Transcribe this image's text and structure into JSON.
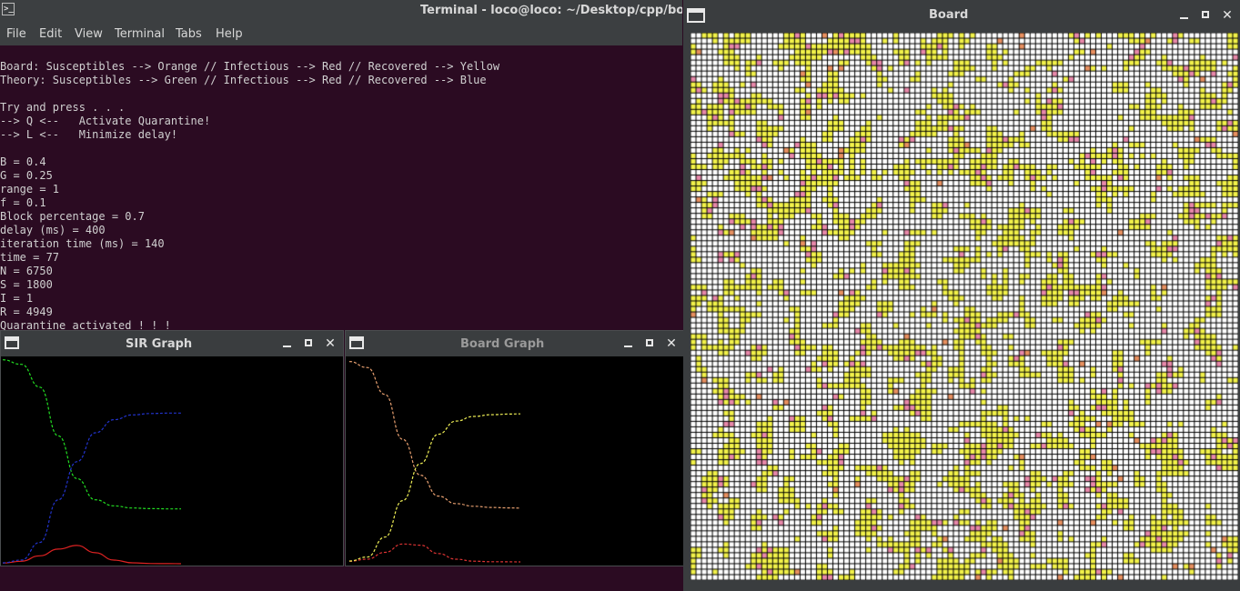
{
  "terminal": {
    "title": "Terminal - loco@loco: ~/Desktop/cpp/board_game",
    "menu": [
      "File",
      "Edit",
      "View",
      "Terminal",
      "Tabs",
      "Help"
    ],
    "lines": [
      "Board: Susceptibles --> Orange // Infectious --> Red // Recovered --> Yellow",
      "Theory: Susceptibles --> Green // Infectious --> Red // Recovered --> Blue",
      "",
      "Try and press . . .",
      "--> Q <--   Activate Quarantine!",
      "--> L <--   Minimize delay!",
      "",
      "B = 0.4",
      "G = 0.25",
      "range = 1",
      "f = 0.1",
      "Block percentage = 0.7",
      "delay (ms) = 400",
      "iteration time (ms) = 140",
      "time = 77",
      "N = 6750",
      "S = 1800",
      "I = 1",
      "R = 4949",
      "Quarantine activated ! ! !"
    ]
  },
  "sir_graph": {
    "title": "SIR Graph",
    "colors": {
      "S": "#22dd22",
      "I": "#dd2222",
      "R": "#2233cc"
    },
    "chart_data": {
      "type": "line",
      "x": [
        0,
        8,
        16,
        24,
        32,
        40,
        48,
        56,
        64,
        72,
        77
      ],
      "series": [
        {
          "values": [
            6700,
            6550,
            5800,
            4200,
            2800,
            2100,
            1900,
            1830,
            1810,
            1800,
            1800
          ]
        },
        {
          "values": [
            20,
            80,
            260,
            480,
            600,
            360,
            120,
            30,
            6,
            2,
            1
          ]
        },
        {
          "values": [
            30,
            120,
            700,
            2100,
            3350,
            4300,
            4730,
            4890,
            4935,
            4948,
            4949
          ]
        }
      ],
      "ylim": [
        0,
        6750
      ]
    }
  },
  "board_graph": {
    "title": "Board Graph",
    "colors": {
      "S": "#e8a070",
      "I": "#dd3333",
      "R": "#eeee55"
    },
    "chart_data": {
      "type": "line",
      "x": [
        0,
        8,
        16,
        24,
        32,
        40,
        48,
        56,
        64,
        72,
        77
      ],
      "series": [
        {
          "values": [
            6700,
            6500,
            5600,
            4100,
            2900,
            2200,
            1950,
            1860,
            1820,
            1805,
            1800
          ]
        },
        {
          "values": [
            20,
            90,
            320,
            600,
            560,
            280,
            90,
            25,
            6,
            2,
            1
          ]
        },
        {
          "values": [
            30,
            160,
            830,
            2050,
            3290,
            4270,
            4710,
            4865,
            4924,
            4943,
            4949
          ]
        }
      ],
      "ylim": [
        0,
        6750
      ]
    }
  },
  "board": {
    "title": "Board",
    "colors": {
      "empty": "#ffffff",
      "grid": "#000000",
      "recovered": "#f2f24a",
      "infectious": "#e888aa",
      "susceptible": "#e89060"
    }
  }
}
